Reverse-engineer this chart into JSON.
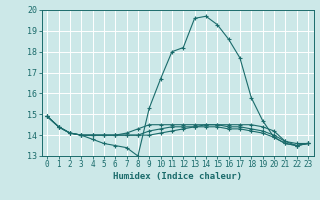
{
  "xlabel": "Humidex (Indice chaleur)",
  "background_color": "#cce8e8",
  "line_color": "#1a6b6b",
  "grid_color": "#ffffff",
  "xlim": [
    -0.5,
    23.5
  ],
  "ylim": [
    13,
    20
  ],
  "yticks": [
    13,
    14,
    15,
    16,
    17,
    18,
    19,
    20
  ],
  "xticks": [
    0,
    1,
    2,
    3,
    4,
    5,
    6,
    7,
    8,
    9,
    10,
    11,
    12,
    13,
    14,
    15,
    16,
    17,
    18,
    19,
    20,
    21,
    22,
    23
  ],
  "series": [
    [
      14.9,
      14.4,
      14.1,
      14.0,
      13.8,
      13.6,
      13.5,
      13.4,
      13.0,
      15.3,
      16.7,
      18.0,
      18.2,
      19.6,
      19.7,
      19.3,
      18.6,
      17.7,
      15.8,
      14.7,
      13.9,
      13.6,
      13.5,
      13.6
    ],
    [
      14.9,
      14.4,
      14.1,
      14.0,
      14.0,
      14.0,
      14.0,
      14.0,
      14.0,
      14.0,
      14.1,
      14.2,
      14.3,
      14.4,
      14.5,
      14.5,
      14.5,
      14.5,
      14.5,
      14.4,
      14.2,
      13.7,
      13.6,
      13.6
    ],
    [
      14.9,
      14.4,
      14.1,
      14.0,
      14.0,
      14.0,
      14.0,
      14.0,
      14.0,
      14.2,
      14.3,
      14.4,
      14.4,
      14.4,
      14.4,
      14.4,
      14.3,
      14.3,
      14.2,
      14.1,
      13.9,
      13.6,
      13.5,
      13.6
    ],
    [
      14.9,
      14.4,
      14.1,
      14.0,
      14.0,
      14.0,
      14.0,
      14.1,
      14.3,
      14.5,
      14.5,
      14.5,
      14.5,
      14.5,
      14.5,
      14.5,
      14.4,
      14.4,
      14.3,
      14.2,
      14.0,
      13.7,
      13.5,
      13.6
    ]
  ]
}
